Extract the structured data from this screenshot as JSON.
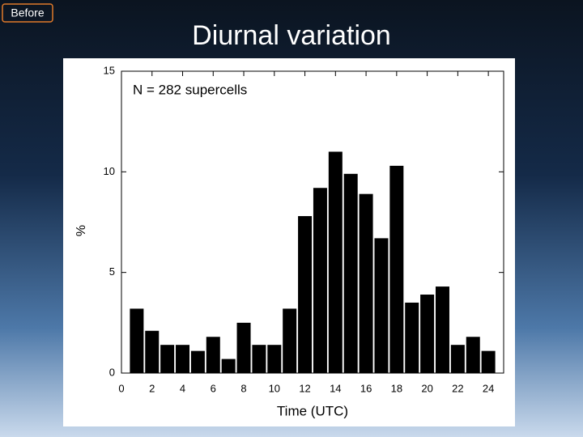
{
  "slide": {
    "label": "Before",
    "title": "Diurnal variation"
  },
  "chart_data": {
    "type": "bar",
    "annotation": "N = 282 supercells",
    "xlabel": "Time (UTC)",
    "ylabel": "%",
    "x": [
      1,
      2,
      3,
      4,
      5,
      6,
      7,
      8,
      9,
      10,
      11,
      12,
      13,
      14,
      15,
      16,
      17,
      18,
      19,
      20,
      21,
      22,
      23,
      24
    ],
    "values": [
      3.2,
      2.1,
      1.4,
      1.4,
      1.1,
      1.8,
      0.7,
      2.5,
      1.4,
      1.4,
      3.2,
      7.8,
      9.2,
      11.0,
      9.9,
      8.9,
      6.7,
      10.3,
      3.5,
      3.9,
      4.3,
      1.4,
      1.8,
      1.1
    ],
    "color": "#000000",
    "xlim": [
      0,
      25
    ],
    "ylim": [
      0,
      15
    ],
    "xticks": [
      0,
      2,
      4,
      6,
      8,
      10,
      12,
      14,
      16,
      18,
      20,
      22,
      24
    ],
    "yticks": [
      0,
      5,
      10,
      15
    ]
  }
}
